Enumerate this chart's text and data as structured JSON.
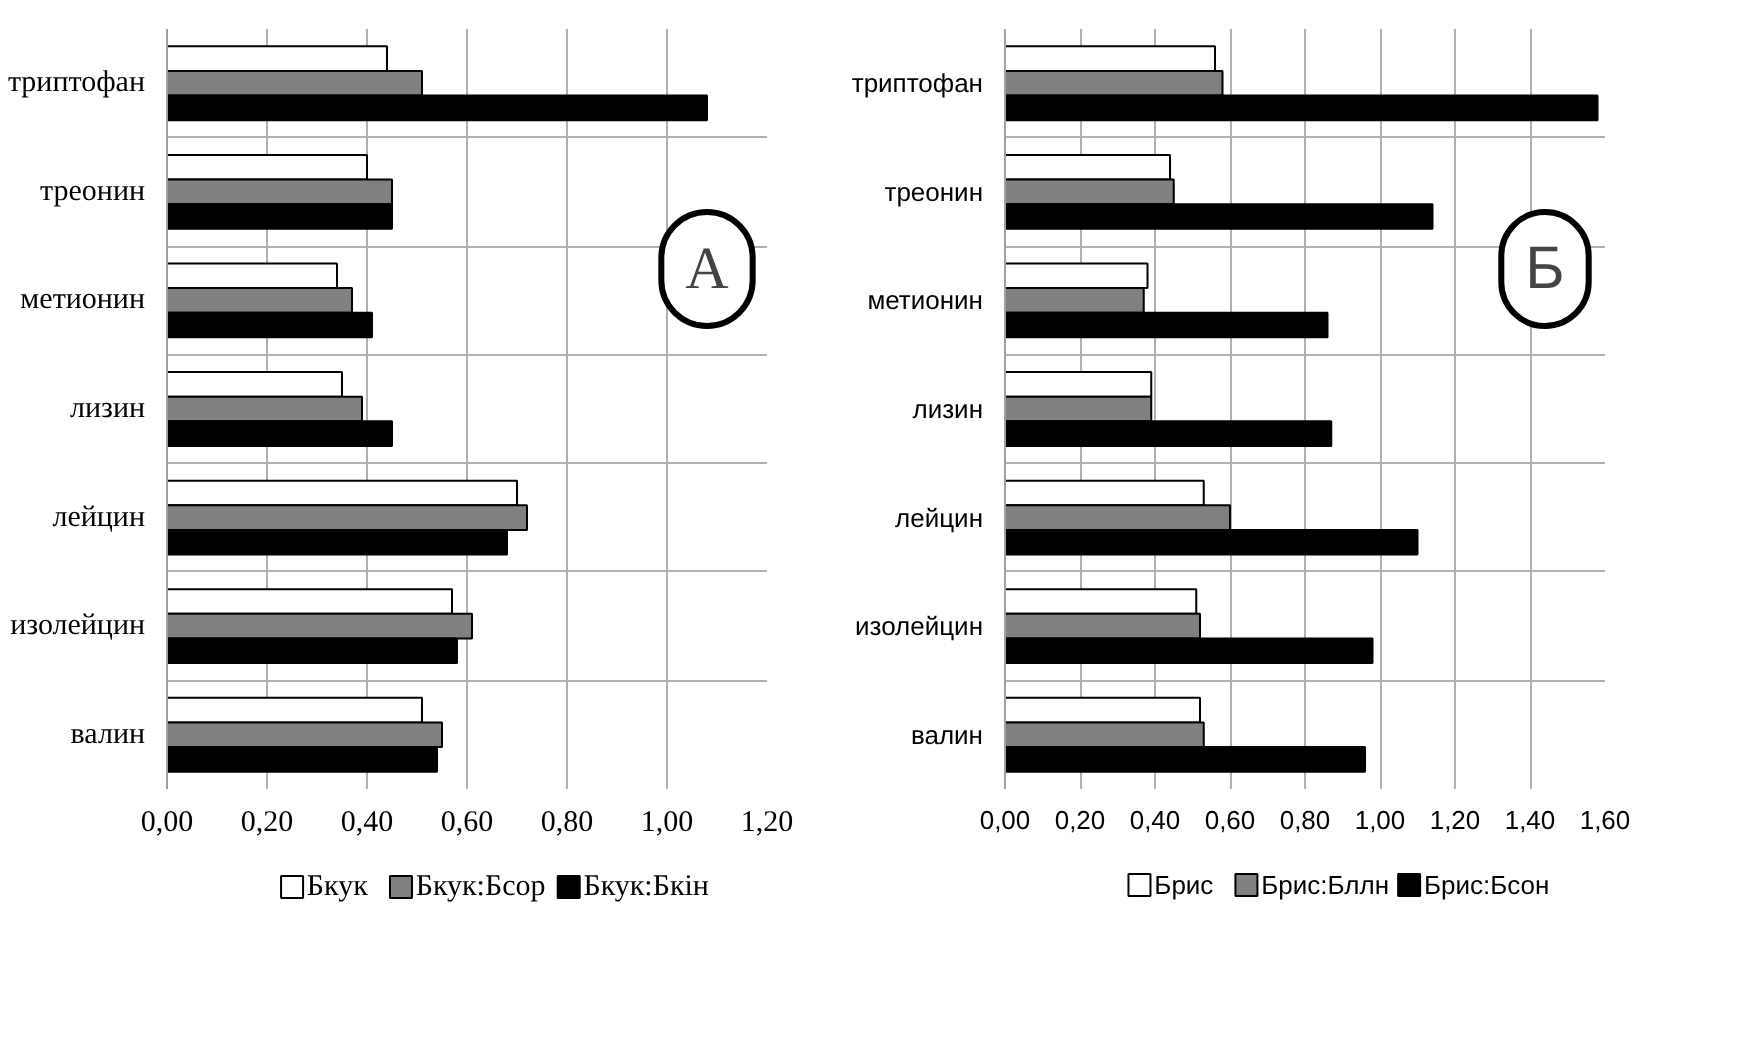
{
  "chart_data": [
    {
      "type": "bar",
      "orientation": "horizontal",
      "categories": [
        "триптофан",
        "треонин",
        "метионин",
        "лизин",
        "лейцин",
        "изолейцин",
        "валин"
      ],
      "series": [
        {
          "name": "Бкук",
          "color": "#ffffff",
          "values": [
            0.44,
            0.4,
            0.34,
            0.35,
            0.7,
            0.57,
            0.51
          ]
        },
        {
          "name": "Бкук:Бсор",
          "color": "#808080",
          "values": [
            0.51,
            0.45,
            0.37,
            0.39,
            0.72,
            0.61,
            0.55
          ]
        },
        {
          "name": "Бкук:Бкін",
          "color": "#000000",
          "values": [
            1.08,
            0.45,
            0.41,
            0.45,
            0.68,
            0.58,
            0.54
          ]
        }
      ],
      "xlim": [
        0,
        1.2
      ],
      "xticks": [
        {
          "value": 0,
          "label": "0,00"
        },
        {
          "value": 0.2,
          "label": "0,20"
        },
        {
          "value": 0.4,
          "label": "0,40"
        },
        {
          "value": 0.6,
          "label": "0,60"
        },
        {
          "value": 0.8,
          "label": "0,80"
        },
        {
          "value": 1.0,
          "label": "1,00"
        },
        {
          "value": 1.2,
          "label": "1,20"
        }
      ],
      "annotations": [
        "А"
      ],
      "grid": true,
      "legend": "bottom"
    },
    {
      "type": "bar",
      "orientation": "horizontal",
      "categories": [
        "триптофан",
        "треонин",
        "метионин",
        "лизин",
        "лейцин",
        "изолейцин",
        "валин"
      ],
      "series": [
        {
          "name": "Брис",
          "color": "#ffffff",
          "values": [
            0.56,
            0.44,
            0.38,
            0.39,
            0.53,
            0.51,
            0.52
          ]
        },
        {
          "name": "Брис:Бллн",
          "color": "#808080",
          "values": [
            0.58,
            0.45,
            0.37,
            0.39,
            0.6,
            0.52,
            0.53
          ]
        },
        {
          "name": "Брис:Бсон",
          "color": "#000000",
          "values": [
            1.58,
            1.14,
            0.86,
            0.87,
            1.1,
            0.98,
            0.96
          ]
        }
      ],
      "xlim": [
        0,
        1.6
      ],
      "xticks": [
        {
          "value": 0,
          "label": "0,00"
        },
        {
          "value": 0.2,
          "label": "0,20"
        },
        {
          "value": 0.4,
          "label": "0,40"
        },
        {
          "value": 0.6,
          "label": "0,60"
        },
        {
          "value": 0.8,
          "label": "0,80"
        },
        {
          "value": 1.0,
          "label": "1,00"
        },
        {
          "value": 1.2,
          "label": "1,20"
        },
        {
          "value": 1.4,
          "label": "1,40"
        },
        {
          "value": 1.6,
          "label": "1,60"
        }
      ],
      "annotations": [
        "Б"
      ],
      "grid": true,
      "legend": "bottom"
    }
  ]
}
